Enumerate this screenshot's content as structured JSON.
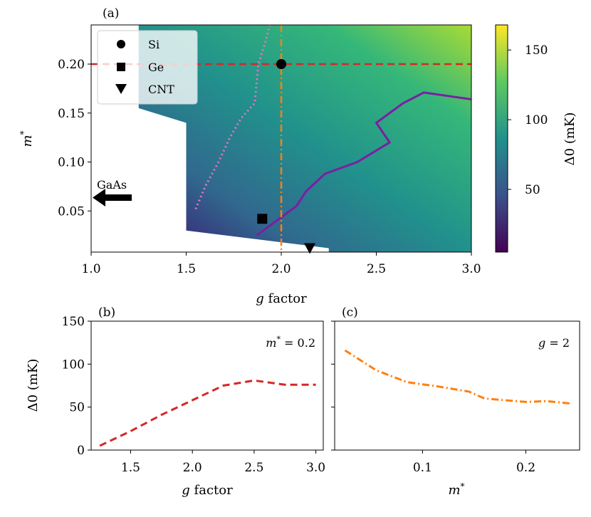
{
  "chart_data": [
    {
      "panel": "(a)",
      "type": "heatmap",
      "xlabel": "g factor",
      "ylabel": "m*",
      "xlim": [
        1.0,
        3.0
      ],
      "ylim": [
        0.008,
        0.24
      ],
      "xticks": [
        "1.0",
        "1.5",
        "2.0",
        "2.5",
        "3.0"
      ],
      "yticks": [
        "0.05",
        "0.10",
        "0.15",
        "0.20"
      ],
      "colorbar": {
        "label": "Δ0 (mK)",
        "range": [
          5,
          168
        ],
        "ticks": [
          "50",
          "100",
          "150"
        ],
        "colormap": "viridis"
      },
      "markers": [
        {
          "name": "Si",
          "shape": "circle",
          "g": 2.0,
          "m": 0.2
        },
        {
          "name": "Ge",
          "shape": "square",
          "g": 1.9,
          "m": 0.042
        },
        {
          "name": "CNT",
          "shape": "triangle-down",
          "g": 2.15,
          "m": 0.012
        }
      ],
      "annotation": {
        "text": "GaAs",
        "g": 1.0,
        "m": 0.067,
        "arrow": "left"
      },
      "hline_m": 0.2,
      "vline_g": 2.0,
      "contour_solid": [
        [
          1.87,
          0.025
        ],
        [
          2.08,
          0.055
        ],
        [
          2.13,
          0.07
        ],
        [
          2.23,
          0.088
        ],
        [
          2.4,
          0.1
        ],
        [
          2.57,
          0.12
        ],
        [
          2.5,
          0.14
        ],
        [
          2.64,
          0.16
        ],
        [
          2.75,
          0.171
        ],
        [
          3.0,
          0.164
        ]
      ],
      "contour_dotted": [
        [
          1.55,
          0.052
        ],
        [
          1.6,
          0.075
        ],
        [
          1.67,
          0.1
        ],
        [
          1.73,
          0.125
        ],
        [
          1.79,
          0.145
        ],
        [
          1.86,
          0.16
        ],
        [
          1.87,
          0.18
        ],
        [
          1.88,
          0.2
        ],
        [
          1.92,
          0.225
        ],
        [
          1.94,
          0.24
        ]
      ]
    },
    {
      "panel": "(b)",
      "type": "line",
      "annotation": "m* = 0.2",
      "xlabel": "g factor",
      "ylabel": "Δ0 (mK)",
      "xlim": [
        1.18,
        3.06
      ],
      "ylim": [
        0,
        150
      ],
      "xticks": [
        "1.5",
        "2.0",
        "2.5",
        "3.0"
      ],
      "yticks": [
        "0",
        "50",
        "100",
        "150"
      ],
      "x": [
        1.25,
        1.5,
        1.75,
        2.0,
        2.25,
        2.5,
        2.75,
        3.0
      ],
      "y": [
        5,
        22,
        41,
        58,
        75,
        81,
        76,
        76
      ],
      "color": "#d62728",
      "style": "dashed"
    },
    {
      "panel": "(c)",
      "type": "line",
      "annotation": "g = 2",
      "xlabel": "m*",
      "ylabel": "",
      "xlim": [
        0.015,
        0.252
      ],
      "ylim": [
        0,
        150
      ],
      "xticks": [
        "0.1",
        "0.2"
      ],
      "x": [
        0.025,
        0.055,
        0.085,
        0.115,
        0.145,
        0.16,
        0.2,
        0.22,
        0.245
      ],
      "y": [
        116,
        93,
        79,
        74,
        68,
        60,
        56,
        57,
        54
      ],
      "color": "#ff7f0e",
      "style": "dashdot"
    }
  ]
}
